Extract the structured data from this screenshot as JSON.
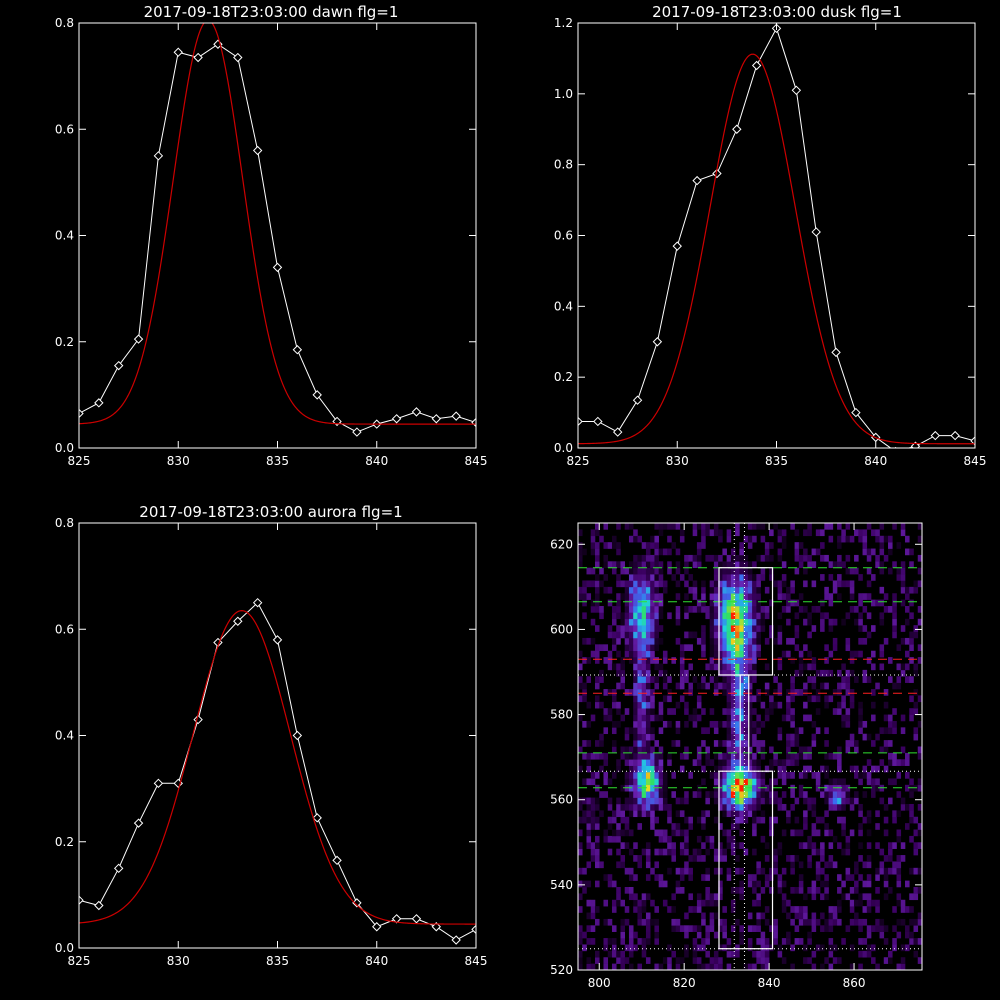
{
  "chart_data": [
    {
      "type": "line",
      "title": "2017-09-18T23:03:00 dawn flg=1",
      "xlim": [
        825,
        845
      ],
      "ylim": [
        0.0,
        0.8
      ],
      "xticks": [
        825,
        830,
        835,
        840,
        845
      ],
      "xtick_labels": [
        "825",
        "830",
        "835",
        "840",
        "845"
      ],
      "yticks": [
        0.0,
        0.2,
        0.4,
        0.6,
        0.8
      ],
      "ytick_labels": [
        "0.0",
        "0.2",
        "0.4",
        "0.6",
        "0.8"
      ],
      "series": [
        {
          "color": "#ffffff",
          "marker": "diamond",
          "x": [
            825,
            826,
            827,
            828,
            829,
            830,
            831,
            832,
            833,
            834,
            835,
            836,
            837,
            838,
            839,
            840,
            841,
            842,
            843,
            844,
            845
          ],
          "y": [
            0.065,
            0.085,
            0.155,
            0.205,
            0.55,
            0.745,
            0.735,
            0.76,
            0.735,
            0.56,
            0.34,
            0.185,
            0.1,
            0.05,
            0.03,
            0.045,
            0.055,
            0.068,
            0.055,
            0.06,
            0.048
          ]
        },
        {
          "color": "#cc0000",
          "kind": "gaussian",
          "params": {
            "amplitude": 0.76,
            "center": 831.5,
            "sigma": 1.75,
            "offset": 0.045
          }
        }
      ]
    },
    {
      "type": "line",
      "title": "2017-09-18T23:03:00 dusk flg=1",
      "xlim": [
        825,
        845
      ],
      "ylim": [
        0.0,
        1.2
      ],
      "xticks": [
        825,
        830,
        835,
        840,
        845
      ],
      "xtick_labels": [
        "825",
        "830",
        "835",
        "840",
        "845"
      ],
      "yticks": [
        0.0,
        0.2,
        0.4,
        0.6,
        0.8,
        1.0,
        1.2
      ],
      "ytick_labels": [
        "0.0",
        "0.2",
        "0.4",
        "0.6",
        "0.8",
        "1.0",
        "1.2"
      ],
      "series": [
        {
          "color": "#ffffff",
          "marker": "diamond",
          "x": [
            825,
            826,
            827,
            828,
            829,
            830,
            831,
            832,
            833,
            834,
            835,
            836,
            837,
            838,
            839,
            840,
            841,
            842,
            843,
            844,
            845
          ],
          "y": [
            0.075,
            0.075,
            0.045,
            0.135,
            0.3,
            0.57,
            0.755,
            0.775,
            0.9,
            1.08,
            1.185,
            1.01,
            0.61,
            0.27,
            0.1,
            0.03,
            -0.01,
            0.005,
            0.035,
            0.035,
            0.02
          ]
        },
        {
          "color": "#cc0000",
          "kind": "gaussian",
          "params": {
            "amplitude": 1.1,
            "center": 833.8,
            "sigma": 2.15,
            "offset": 0.012
          }
        }
      ]
    },
    {
      "type": "line",
      "title": "2017-09-18T23:03:00 aurora flg=1",
      "xlim": [
        825,
        845
      ],
      "ylim": [
        0.0,
        0.8
      ],
      "xticks": [
        825,
        830,
        835,
        840,
        845
      ],
      "xtick_labels": [
        "825",
        "830",
        "835",
        "840",
        "845"
      ],
      "yticks": [
        0.0,
        0.2,
        0.4,
        0.6,
        0.8
      ],
      "ytick_labels": [
        "0.0",
        "0.2",
        "0.4",
        "0.6",
        "0.8"
      ],
      "series": [
        {
          "color": "#ffffff",
          "marker": "diamond",
          "x": [
            825,
            826,
            827,
            828,
            829,
            830,
            831,
            832,
            833,
            834,
            835,
            836,
            837,
            838,
            839,
            840,
            841,
            842,
            843,
            844,
            845
          ],
          "y": [
            0.09,
            0.08,
            0.15,
            0.235,
            0.31,
            0.31,
            0.43,
            0.575,
            0.615,
            0.65,
            0.58,
            0.4,
            0.245,
            0.165,
            0.085,
            0.04,
            0.055,
            0.055,
            0.04,
            0.015,
            0.035
          ]
        },
        {
          "color": "#cc0000",
          "kind": "gaussian",
          "params": {
            "amplitude": 0.59,
            "center": 833.2,
            "sigma": 2.45,
            "offset": 0.045
          }
        }
      ]
    },
    {
      "type": "heatmap",
      "xlim": [
        795,
        876
      ],
      "ylim": [
        520,
        625
      ],
      "xticks": [
        800,
        820,
        840,
        860
      ],
      "xtick_labels": [
        "800",
        "820",
        "840",
        "860"
      ],
      "yticks": [
        520,
        540,
        560,
        580,
        600,
        620
      ],
      "ytick_labels": [
        "520",
        "540",
        "560",
        "580",
        "600",
        "620"
      ],
      "colormap": [
        "#000000",
        "#3a0060",
        "#6a20b0",
        "#3b6cf0",
        "#20d0e0",
        "#30e060",
        "#e8e020",
        "#ff2000"
      ],
      "blobs": [
        {
          "x": 810,
          "y": 604,
          "sx": 2.0,
          "sy": 6.0,
          "amp": 0.55
        },
        {
          "x": 811,
          "y": 564,
          "sx": 2.0,
          "sy": 3.5,
          "amp": 0.7
        },
        {
          "x": 810,
          "y": 583,
          "sx": 1.2,
          "sy": 9.0,
          "amp": 0.25
        },
        {
          "x": 832,
          "y": 602,
          "sx": 2.6,
          "sy": 6.5,
          "amp": 0.8
        },
        {
          "x": 833,
          "y": 563,
          "sx": 2.6,
          "sy": 3.2,
          "amp": 0.95
        },
        {
          "x": 833,
          "y": 582,
          "sx": 1.5,
          "sy": 12.0,
          "amp": 0.35
        },
        {
          "x": 856,
          "y": 561,
          "sx": 1.5,
          "sy": 2.0,
          "amp": 0.35
        }
      ],
      "hlines": [
        {
          "y": 614.5,
          "color": "#30e030",
          "style": "dashed"
        },
        {
          "y": 606.5,
          "color": "#30e030",
          "style": "dashed"
        },
        {
          "y": 593.0,
          "color": "#ff2020",
          "style": "dashed"
        },
        {
          "y": 589.3,
          "color": "#ffffff",
          "style": "dotted"
        },
        {
          "y": 585.0,
          "color": "#ff2020",
          "style": "dashed"
        },
        {
          "y": 571.0,
          "color": "#30e030",
          "style": "dashed"
        },
        {
          "y": 566.7,
          "color": "#ffffff",
          "style": "dotted"
        },
        {
          "y": 562.8,
          "color": "#30e030",
          "style": "dashed"
        },
        {
          "y": 525.0,
          "color": "#ffffff",
          "style": "dotted"
        }
      ],
      "vlines": [
        {
          "x": 831.8,
          "color": "#ffffff",
          "style": "dotted"
        },
        {
          "x": 834.2,
          "color": "#ffffff",
          "style": "dotted"
        }
      ],
      "boxes": [
        {
          "x0": 828.2,
          "x1": 840.8,
          "y0": 589.3,
          "y1": 614.5
        },
        {
          "x0": 828.2,
          "x1": 840.8,
          "y0": 525.0,
          "y1": 566.7
        },
        {
          "x0": 833.2,
          "x1": 835.2,
          "y0": 566.7,
          "y1": 589.3
        }
      ]
    }
  ]
}
